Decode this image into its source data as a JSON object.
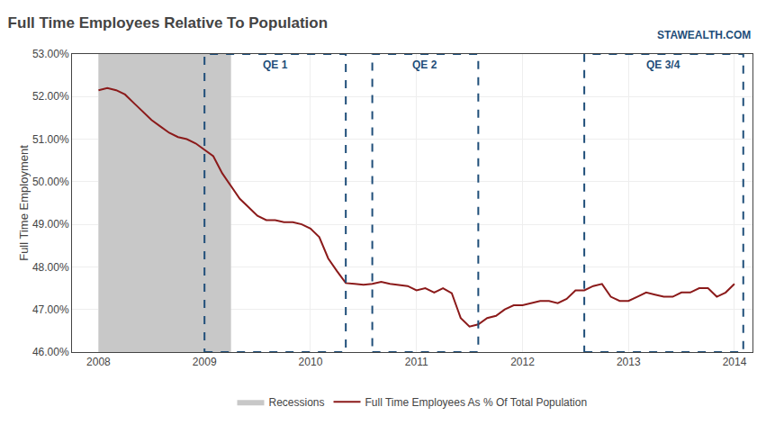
{
  "chart_data": {
    "type": "line",
    "title": "Full Time Employees Relative To Population",
    "annotations": [
      "STAWEALTH.COM"
    ],
    "ylabel": "Full Time Employment",
    "xlim": [
      2007.75,
      2014.17
    ],
    "xticks": [
      2008,
      2009,
      2010,
      2011,
      2012,
      2013,
      2014
    ],
    "ylim": [
      0.46,
      0.53
    ],
    "yticks": [
      {
        "value": 0.46,
        "label": "46.00%"
      },
      {
        "value": 0.47,
        "label": "47.00%"
      },
      {
        "value": 0.48,
        "label": "48.00%"
      },
      {
        "value": 0.49,
        "label": "49.00%"
      },
      {
        "value": 0.5,
        "label": "50.00%"
      },
      {
        "value": 0.51,
        "label": "51.00%"
      },
      {
        "value": 0.52,
        "label": "52.00%"
      },
      {
        "value": 0.53,
        "label": "53.00%"
      }
    ],
    "grid": true,
    "legend": "bottom",
    "recessions": [
      {
        "name": "Recessions",
        "x_start": 2008.0,
        "x_end": 2009.25,
        "color": "#c8c8c8"
      }
    ],
    "qe_regions": {
      "color": "#1F4E79",
      "y_bottom": 0.46,
      "y_top": 0.53,
      "regions": [
        {
          "label": "QE 1",
          "x_start": 2009.0,
          "x_end": 2010.333
        },
        {
          "label": "QE 2",
          "x_start": 2010.583,
          "x_end": 2011.583
        },
        {
          "label": "QE 3/4",
          "x_start": 2012.583,
          "x_end": 2014.083
        }
      ]
    },
    "x": [
      2008.0,
      2008.083,
      2008.167,
      2008.25,
      2008.333,
      2008.417,
      2008.5,
      2008.583,
      2008.667,
      2008.75,
      2008.833,
      2008.917,
      2009.0,
      2009.083,
      2009.167,
      2009.25,
      2009.333,
      2009.417,
      2009.5,
      2009.583,
      2009.667,
      2009.75,
      2009.833,
      2009.917,
      2010.0,
      2010.083,
      2010.167,
      2010.25,
      2010.333,
      2010.417,
      2010.5,
      2010.583,
      2010.667,
      2010.75,
      2010.833,
      2010.917,
      2011.0,
      2011.083,
      2011.167,
      2011.25,
      2011.333,
      2011.417,
      2011.5,
      2011.583,
      2011.667,
      2011.75,
      2011.833,
      2011.917,
      2012.0,
      2012.083,
      2012.167,
      2012.25,
      2012.333,
      2012.417,
      2012.5,
      2012.583,
      2012.667,
      2012.75,
      2012.833,
      2012.917,
      2013.0,
      2013.083,
      2013.167,
      2013.25,
      2013.333,
      2013.417,
      2013.5,
      2013.583,
      2013.667,
      2013.75,
      2013.833,
      2013.917,
      2014.0
    ],
    "series": [
      {
        "name": "Full Time Employees As % Of Total Population",
        "color": "#8B1A1A",
        "values": [
          0.5215,
          0.522,
          0.5215,
          0.5205,
          0.5185,
          0.5165,
          0.5145,
          0.513,
          0.5115,
          0.5105,
          0.51,
          0.509,
          0.5075,
          0.506,
          0.502,
          0.499,
          0.496,
          0.494,
          0.492,
          0.491,
          0.491,
          0.4905,
          0.4905,
          0.49,
          0.489,
          0.487,
          0.482,
          0.479,
          0.4762,
          0.476,
          0.4758,
          0.476,
          0.4765,
          0.476,
          0.4758,
          0.4755,
          0.4745,
          0.475,
          0.474,
          0.475,
          0.4738,
          0.468,
          0.466,
          0.4665,
          0.468,
          0.4685,
          0.47,
          0.471,
          0.471,
          0.4715,
          0.472,
          0.472,
          0.4715,
          0.4725,
          0.4745,
          0.4745,
          0.4755,
          0.476,
          0.473,
          0.472,
          0.472,
          0.473,
          0.474,
          0.4735,
          0.473,
          0.473,
          0.474,
          0.474,
          0.475,
          0.475,
          0.473,
          0.474,
          0.476
        ]
      }
    ]
  }
}
